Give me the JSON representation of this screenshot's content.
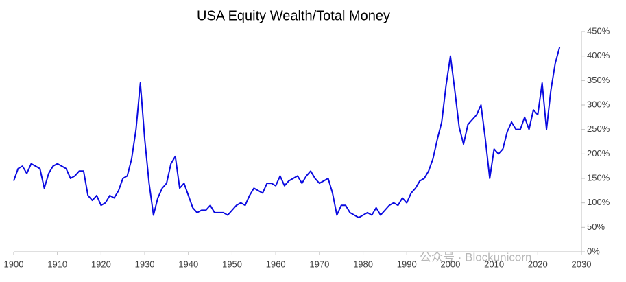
{
  "chart_data": {
    "type": "line",
    "title": "USA Equity Wealth/Total Money",
    "watermark": "公众号 · Blockunicorn",
    "x": [
      1900,
      1901,
      1902,
      1903,
      1904,
      1905,
      1906,
      1907,
      1908,
      1909,
      1910,
      1911,
      1912,
      1913,
      1914,
      1915,
      1916,
      1917,
      1918,
      1919,
      1920,
      1921,
      1922,
      1923,
      1924,
      1925,
      1926,
      1927,
      1928,
      1929,
      1930,
      1931,
      1932,
      1933,
      1934,
      1935,
      1936,
      1937,
      1938,
      1939,
      1940,
      1941,
      1942,
      1943,
      1944,
      1945,
      1946,
      1947,
      1948,
      1949,
      1950,
      1951,
      1952,
      1953,
      1954,
      1955,
      1956,
      1957,
      1958,
      1959,
      1960,
      1961,
      1962,
      1963,
      1964,
      1965,
      1966,
      1967,
      1968,
      1969,
      1970,
      1971,
      1972,
      1973,
      1974,
      1975,
      1976,
      1977,
      1978,
      1979,
      1980,
      1981,
      1982,
      1983,
      1984,
      1985,
      1986,
      1987,
      1988,
      1989,
      1990,
      1991,
      1992,
      1993,
      1994,
      1995,
      1996,
      1997,
      1998,
      1999,
      2000,
      2001,
      2002,
      2003,
      2004,
      2005,
      2006,
      2007,
      2008,
      2009,
      2010,
      2011,
      2012,
      2013,
      2014,
      2015,
      2016,
      2017,
      2018,
      2019,
      2020,
      2021,
      2022,
      2023,
      2024,
      2025
    ],
    "series": [
      {
        "name": "USA Equity Wealth/Total Money",
        "color": "#0a0ae0",
        "values": [
          145,
          170,
          175,
          160,
          180,
          175,
          170,
          130,
          160,
          175,
          180,
          175,
          170,
          150,
          155,
          165,
          165,
          115,
          105,
          115,
          95,
          100,
          115,
          110,
          125,
          150,
          155,
          190,
          250,
          345,
          230,
          140,
          75,
          110,
          130,
          140,
          180,
          195,
          130,
          140,
          115,
          90,
          80,
          85,
          85,
          95,
          80,
          80,
          80,
          75,
          85,
          95,
          100,
          95,
          115,
          130,
          125,
          120,
          140,
          140,
          135,
          155,
          135,
          145,
          150,
          155,
          140,
          155,
          165,
          150,
          140,
          145,
          150,
          120,
          75,
          95,
          95,
          80,
          75,
          70,
          75,
          80,
          75,
          90,
          75,
          85,
          95,
          100,
          95,
          110,
          100,
          120,
          130,
          145,
          150,
          165,
          190,
          230,
          265,
          340,
          400,
          330,
          255,
          220,
          260,
          270,
          280,
          300,
          230,
          150,
          210,
          200,
          210,
          245,
          265,
          250,
          250,
          275,
          250,
          290,
          280,
          345,
          250,
          330,
          385,
          418
        ]
      }
    ],
    "xlim": [
      1900,
      2030
    ],
    "xticks": [
      1900,
      1910,
      1920,
      1930,
      1940,
      1950,
      1960,
      1970,
      1980,
      1990,
      2000,
      2010,
      2020,
      2030
    ],
    "ylim": [
      0,
      450
    ],
    "yticks": [
      {
        "value": 0,
        "label": "0%"
      },
      {
        "value": 50,
        "label": "50%"
      },
      {
        "value": 100,
        "label": "100%"
      },
      {
        "value": 150,
        "label": "150%"
      },
      {
        "value": 200,
        "label": "200%"
      },
      {
        "value": 250,
        "label": "250%"
      },
      {
        "value": 300,
        "label": "300%"
      },
      {
        "value": 350,
        "label": "350%"
      },
      {
        "value": 400,
        "label": "400%"
      },
      {
        "value": 450,
        "label": "450%"
      }
    ],
    "y_axis_side": "right",
    "grid": false
  }
}
